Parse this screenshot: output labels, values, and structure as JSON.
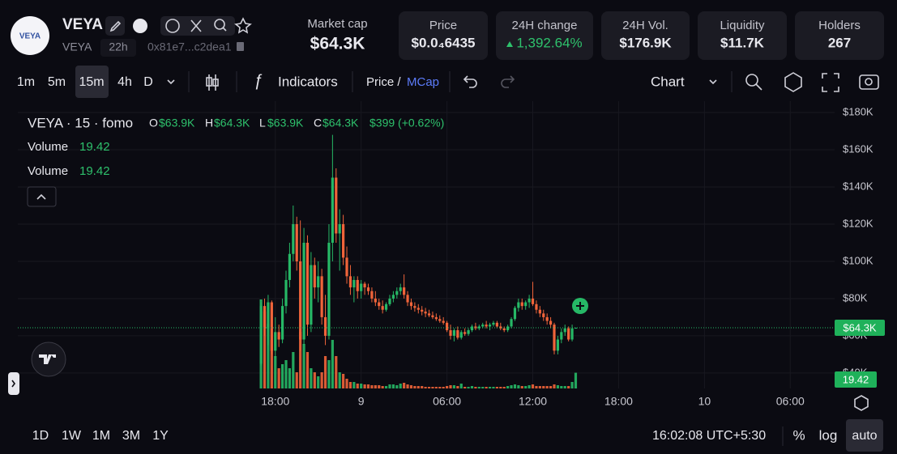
{
  "header": {
    "logo_text": "VEYA",
    "name": "VEYA",
    "symbol": "VEYA",
    "age": "22h",
    "address": "0x81e7...c2dea1"
  },
  "stats": [
    {
      "label": "Market cap",
      "value": "$64.3K"
    },
    {
      "label": "Price",
      "value": "$0.0₄6435"
    },
    {
      "label": "24H change",
      "value": "1,392.64%"
    },
    {
      "label": "24H Vol.",
      "value": "$176.9K"
    },
    {
      "label": "Liquidity",
      "value": "$11.7K"
    },
    {
      "label": "Holders",
      "value": "267"
    }
  ],
  "toolbar": {
    "intervals": [
      "1m",
      "5m",
      "15m",
      "4h",
      "D"
    ],
    "indicators": "Indicators",
    "price": "Price /",
    "mcap": "MCap",
    "chart": "Chart"
  },
  "legend": {
    "symbol": "VEYA · 15 · fomo",
    "o_label": "O",
    "o": "$63.9K",
    "h_label": "H",
    "h": "$64.3K",
    "l_label": "L",
    "l": "$63.9K",
    "c_label": "C",
    "c": "$64.3K",
    "change": "$399 (+0.62%)",
    "volume_rows": [
      "Volume",
      "Volume"
    ]
  },
  "chart": {
    "type": "candlestick",
    "up_color": "#26b866",
    "down_color": "#f0643a",
    "grid": true,
    "xlim": [
      0,
      57.1
    ],
    "xticks": [
      {
        "value": 18,
        "label": "18:00"
      },
      {
        "value": 24,
        "label": "9"
      },
      {
        "value": 30,
        "label": "06:00"
      },
      {
        "value": 36,
        "label": "12:00"
      },
      {
        "value": 42,
        "label": "18:00"
      },
      {
        "value": 48,
        "label": "10"
      },
      {
        "value": 54,
        "label": "06:00"
      }
    ],
    "ylim": [
      31700,
      186100
    ],
    "yticks": [
      {
        "value": 40000,
        "label": "$40K"
      },
      {
        "value": 60000,
        "label": "$60K"
      },
      {
        "value": 80000,
        "label": "$80K"
      },
      {
        "value": 100000,
        "label": "$100K"
      },
      {
        "value": 120000,
        "label": "$120K"
      },
      {
        "value": 140000,
        "label": "$140K"
      },
      {
        "value": 160000,
        "label": "$160K"
      },
      {
        "value": 180000,
        "label": "$180K"
      }
    ],
    "vol_ylim": [
      0,
      355
    ],
    "price_label": "$64.3K",
    "candles": [
      [
        17,
        45000,
        78000,
        44000,
        76000,
        110
      ],
      [
        17.25,
        76000,
        80000,
        60000,
        64000,
        95
      ],
      [
        17.5,
        64000,
        82000,
        55000,
        78000,
        80
      ],
      [
        17.75,
        78000,
        79000,
        50000,
        52000,
        60
      ],
      [
        18,
        52000,
        70000,
        48000,
        62000,
        40
      ],
      [
        18.25,
        62000,
        66000,
        54000,
        58000,
        25
      ],
      [
        18.5,
        58000,
        80000,
        56000,
        76000,
        30
      ],
      [
        18.75,
        76000,
        95000,
        72000,
        90000,
        35
      ],
      [
        19,
        90000,
        110000,
        86000,
        104000,
        25
      ],
      [
        19.25,
        104000,
        130000,
        100000,
        120000,
        45
      ],
      [
        19.5,
        120000,
        124000,
        95000,
        100000,
        20
      ],
      [
        19.75,
        100000,
        122000,
        52000,
        58000,
        70
      ],
      [
        20,
        58000,
        118000,
        55000,
        110000,
        55
      ],
      [
        20.25,
        110000,
        114000,
        60000,
        66000,
        45
      ],
      [
        20.5,
        66000,
        105000,
        62000,
        98000,
        25
      ],
      [
        20.75,
        98000,
        102000,
        80000,
        86000,
        20
      ],
      [
        21,
        86000,
        100000,
        78000,
        92000,
        15
      ],
      [
        21.25,
        92000,
        96000,
        66000,
        70000,
        20
      ],
      [
        21.5,
        70000,
        82000,
        55000,
        60000,
        40
      ],
      [
        21.75,
        60000,
        120000,
        58000,
        110000,
        35
      ],
      [
        22,
        110000,
        168000,
        100000,
        145000,
        60
      ],
      [
        22.25,
        145000,
        150000,
        110000,
        115000,
        40
      ],
      [
        22.5,
        115000,
        128000,
        95000,
        120000,
        20
      ],
      [
        22.75,
        120000,
        125000,
        98000,
        102000,
        18
      ],
      [
        23,
        102000,
        108000,
        88000,
        92000,
        12
      ],
      [
        23.25,
        92000,
        98000,
        82000,
        86000,
        8
      ],
      [
        23.5,
        86000,
        92000,
        78000,
        90000,
        8
      ],
      [
        23.75,
        90000,
        92000,
        80000,
        84000,
        6
      ],
      [
        24,
        84000,
        90000,
        80000,
        88000,
        6
      ],
      [
        24.25,
        88000,
        89000,
        82000,
        86000,
        5
      ],
      [
        24.5,
        86000,
        88000,
        82000,
        84000,
        5
      ],
      [
        24.75,
        84000,
        86000,
        78000,
        80000,
        4
      ],
      [
        25,
        80000,
        84000,
        76000,
        78000,
        4
      ],
      [
        25.25,
        78000,
        80000,
        74000,
        76000,
        4
      ],
      [
        25.5,
        76000,
        79000,
        72000,
        74000,
        3
      ],
      [
        25.75,
        74000,
        78000,
        73000,
        77000,
        3
      ],
      [
        26,
        77000,
        82000,
        76000,
        80000,
        5
      ],
      [
        26.25,
        80000,
        84000,
        78000,
        82000,
        5
      ],
      [
        26.5,
        82000,
        86000,
        80000,
        84000,
        4
      ],
      [
        26.75,
        84000,
        88000,
        82000,
        86000,
        6
      ],
      [
        27,
        86000,
        93000,
        80000,
        82000,
        7
      ],
      [
        27.25,
        82000,
        84000,
        76000,
        78000,
        5
      ],
      [
        27.5,
        78000,
        80000,
        74000,
        76000,
        4
      ],
      [
        27.75,
        76000,
        78000,
        73000,
        75000,
        3
      ],
      [
        28,
        75000,
        77000,
        72000,
        74000,
        3
      ],
      [
        28.25,
        74000,
        76000,
        71000,
        73000,
        3
      ],
      [
        28.5,
        73000,
        75000,
        70000,
        72000,
        2
      ],
      [
        28.75,
        72000,
        74000,
        70000,
        71000,
        2
      ],
      [
        29,
        71000,
        73000,
        69000,
        70000,
        2
      ],
      [
        29.25,
        70000,
        72000,
        68000,
        69000,
        2
      ],
      [
        29.5,
        69000,
        71000,
        67000,
        68000,
        2
      ],
      [
        29.75,
        68000,
        70000,
        66000,
        67000,
        2
      ],
      [
        30,
        67000,
        68000,
        62000,
        63000,
        3
      ],
      [
        30.25,
        63000,
        66000,
        58000,
        60000,
        4
      ],
      [
        30.5,
        60000,
        64000,
        57000,
        63000,
        4
      ],
      [
        30.75,
        63000,
        65000,
        58000,
        59000,
        3
      ],
      [
        31,
        59000,
        63000,
        58000,
        62000,
        6
      ],
      [
        31.25,
        62000,
        64000,
        60000,
        61000,
        2
      ],
      [
        31.5,
        61000,
        64000,
        60000,
        63000,
        2
      ],
      [
        31.75,
        63000,
        66000,
        62000,
        65000,
        3
      ],
      [
        32,
        65000,
        67000,
        63000,
        64000,
        2
      ],
      [
        32.25,
        64000,
        66000,
        63000,
        65000,
        2
      ],
      [
        32.5,
        65000,
        67000,
        64000,
        66000,
        2
      ],
      [
        32.75,
        66000,
        68000,
        64000,
        65000,
        2
      ],
      [
        33,
        65000,
        67000,
        63000,
        66000,
        2
      ],
      [
        33.25,
        66000,
        68000,
        65000,
        67000,
        2
      ],
      [
        33.5,
        67000,
        68000,
        64000,
        65000,
        2
      ],
      [
        33.75,
        65000,
        67000,
        63000,
        64000,
        2
      ],
      [
        34,
        64000,
        65000,
        62000,
        63000,
        2
      ],
      [
        34.25,
        63000,
        66000,
        62000,
        65000,
        3
      ],
      [
        34.5,
        65000,
        70000,
        64000,
        69000,
        4
      ],
      [
        34.75,
        69000,
        76000,
        68000,
        75000,
        5
      ],
      [
        35,
        75000,
        80000,
        73000,
        78000,
        4
      ],
      [
        35.25,
        78000,
        80000,
        74000,
        76000,
        3
      ],
      [
        35.5,
        76000,
        79000,
        74000,
        78000,
        3
      ],
      [
        35.75,
        78000,
        82000,
        75000,
        80000,
        4
      ],
      [
        36,
        80000,
        89000,
        76000,
        77000,
        5
      ],
      [
        36.25,
        77000,
        79000,
        72000,
        74000,
        3
      ],
      [
        36.5,
        74000,
        76000,
        70000,
        72000,
        3
      ],
      [
        36.75,
        72000,
        74000,
        68000,
        70000,
        3
      ],
      [
        37,
        70000,
        72000,
        66000,
        68000,
        3
      ],
      [
        37.25,
        68000,
        70000,
        64000,
        66000,
        3
      ],
      [
        37.5,
        66000,
        67000,
        50000,
        52000,
        5
      ],
      [
        37.75,
        52000,
        60000,
        50000,
        58000,
        4
      ],
      [
        38,
        58000,
        64000,
        56000,
        62000,
        3
      ],
      [
        38.25,
        62000,
        66000,
        60000,
        64000,
        3
      ],
      [
        38.5,
        64000,
        65000,
        57000,
        58000,
        3
      ],
      [
        38.75,
        58000,
        66000,
        57000,
        64000,
        8
      ],
      [
        39,
        63900,
        64300,
        63900,
        64300,
        19.42
      ]
    ]
  },
  "footer": {
    "ranges": [
      "1D",
      "1W",
      "1M",
      "3M",
      "1Y"
    ],
    "time": "16:02:08 UTC+5:30",
    "percent": "%",
    "log": "log",
    "auto": "auto"
  }
}
